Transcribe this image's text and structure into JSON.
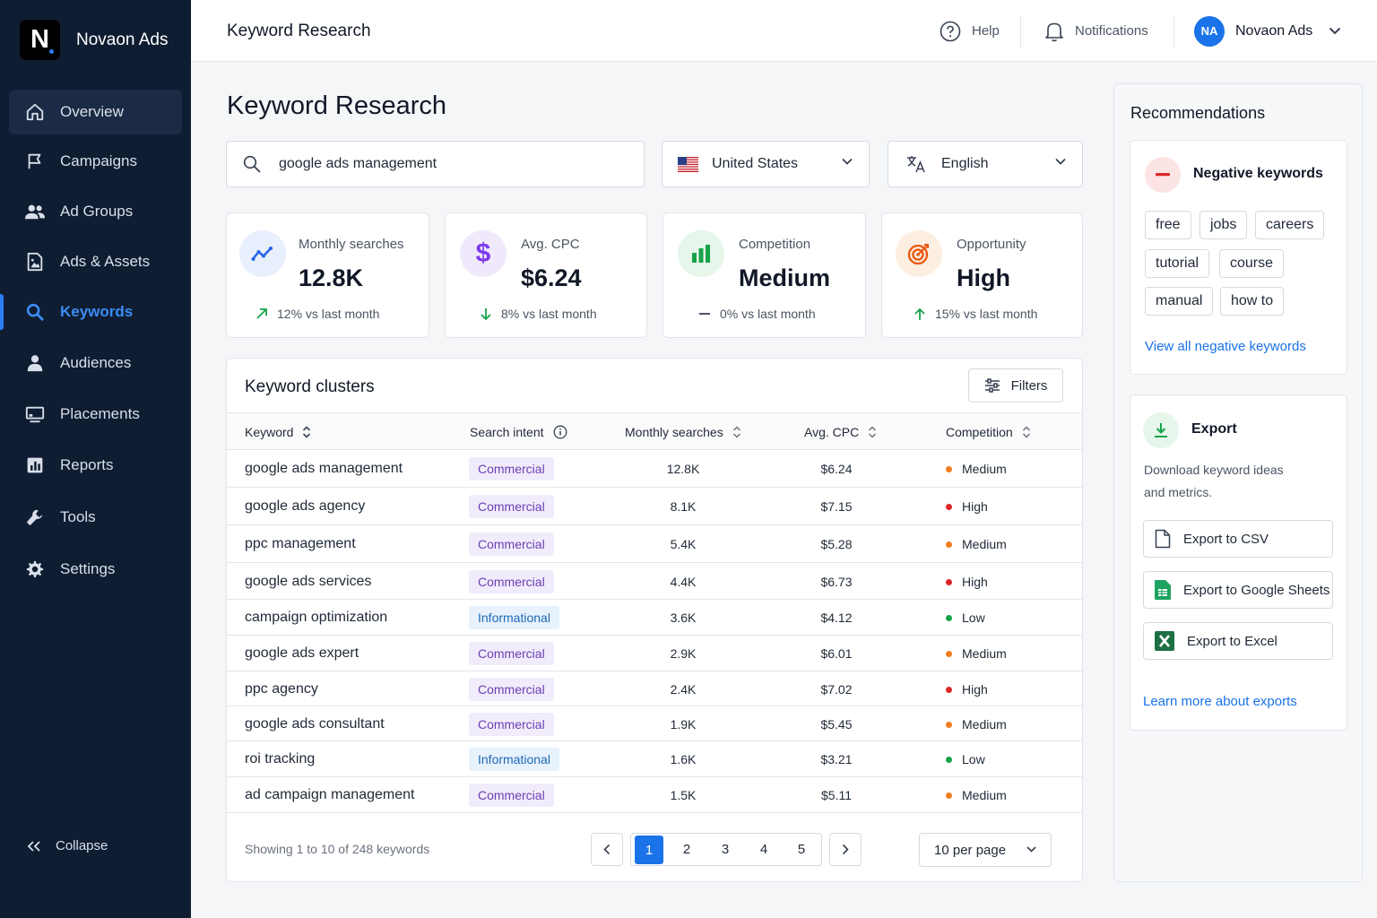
{
  "app": {
    "name": "Novaon Ads",
    "logo_letter": "N"
  },
  "sidebar": {
    "items": [
      {
        "label": "Overview",
        "icon": "home-icon"
      },
      {
        "label": "Campaigns",
        "icon": "flag-icon"
      },
      {
        "label": "Ad Groups",
        "icon": "users-icon"
      },
      {
        "label": "Ads & Assets",
        "icon": "image-doc-icon"
      },
      {
        "label": "Keywords",
        "icon": "search-icon"
      },
      {
        "label": "Audiences",
        "icon": "person-icon"
      },
      {
        "label": "Placements",
        "icon": "monitor-icon"
      },
      {
        "label": "Reports",
        "icon": "bar-chart-icon"
      },
      {
        "label": "Tools",
        "icon": "wrench-icon"
      },
      {
        "label": "Settings",
        "icon": "gear-icon"
      }
    ],
    "active": "Keywords",
    "collapse_label": "Collapse"
  },
  "header": {
    "title": "Keyword Research",
    "help_label": "Help",
    "notifications_label": "Notifications",
    "account_initials": "NA",
    "account_name": "Novaon Ads"
  },
  "page": {
    "title": "Keyword Research"
  },
  "search": {
    "value": "google ads management"
  },
  "location": {
    "value": "United States",
    "icon": "us-flag-icon"
  },
  "language": {
    "value": "English",
    "icon": "translate-icon"
  },
  "stats": [
    {
      "label": "Monthly searches",
      "value": "12.8K",
      "change": "12% vs last month",
      "trend": "up",
      "color": "#2563eb"
    },
    {
      "label": "Avg. CPC",
      "value": "$6.24",
      "change": "8% vs last month",
      "trend": "down",
      "color": "#7c3aed"
    },
    {
      "label": "Competition",
      "value": "Medium",
      "change": "0% vs last month",
      "trend": "flat",
      "color": "#16a34a"
    },
    {
      "label": "Opportunity",
      "value": "High",
      "change": "15% vs last month",
      "trend": "up",
      "color": "#ea580c"
    }
  ],
  "table": {
    "title": "Keyword clusters",
    "filters_label": "Filters",
    "columns": [
      "Keyword",
      "Search intent",
      "Monthly searches",
      "Avg. CPC",
      "Competition"
    ],
    "rows": [
      {
        "keyword": "google ads management",
        "intent": "Commercial",
        "searches": "12.8K",
        "cpc": "$6.24",
        "competition": "Medium"
      },
      {
        "keyword": "google ads agency",
        "intent": "Commercial",
        "searches": "8.1K",
        "cpc": "$7.15",
        "competition": "High"
      },
      {
        "keyword": "ppc management",
        "intent": "Commercial",
        "searches": "5.4K",
        "cpc": "$5.28",
        "competition": "Medium"
      },
      {
        "keyword": "google ads services",
        "intent": "Commercial",
        "searches": "4.4K",
        "cpc": "$6.73",
        "competition": "High"
      },
      {
        "keyword": "campaign optimization",
        "intent": "Informational",
        "searches": "3.6K",
        "cpc": "$4.12",
        "competition": "Low"
      },
      {
        "keyword": "google ads expert",
        "intent": "Commercial",
        "searches": "2.9K",
        "cpc": "$6.01",
        "competition": "Medium"
      },
      {
        "keyword": "ppc agency",
        "intent": "Commercial",
        "searches": "2.4K",
        "cpc": "$7.02",
        "competition": "High"
      },
      {
        "keyword": "google ads consultant",
        "intent": "Commercial",
        "searches": "1.9K",
        "cpc": "$5.45",
        "competition": "Medium"
      },
      {
        "keyword": "roi tracking",
        "intent": "Informational",
        "searches": "1.6K",
        "cpc": "$3.21",
        "competition": "Low"
      },
      {
        "keyword": "ad campaign management",
        "intent": "Commercial",
        "searches": "1.5K",
        "cpc": "$5.11",
        "competition": "Medium"
      }
    ],
    "showing_text": "Showing 1 to 10 of 248 keywords",
    "pages": [
      "1",
      "2",
      "3",
      "4",
      "5"
    ],
    "current_page": "1",
    "per_page": "10 per page"
  },
  "competition_colors": {
    "Medium": "#f07c1d",
    "High": "#dc2626",
    "Low": "#16a34a"
  },
  "recommendations": {
    "title": "Recommendations",
    "negative": {
      "title": "Negative keywords",
      "chips": [
        "free",
        "jobs",
        "careers",
        "tutorial",
        "course",
        "manual",
        "how to"
      ],
      "link": "View all negative keywords"
    },
    "export": {
      "title": "Export",
      "description_line1": "Download keyword ideas",
      "description_line2": "and metrics.",
      "buttons": [
        "Export to CSV",
        "Export to Google Sheets",
        "Export to Excel"
      ],
      "link": "Learn more about exports"
    }
  }
}
